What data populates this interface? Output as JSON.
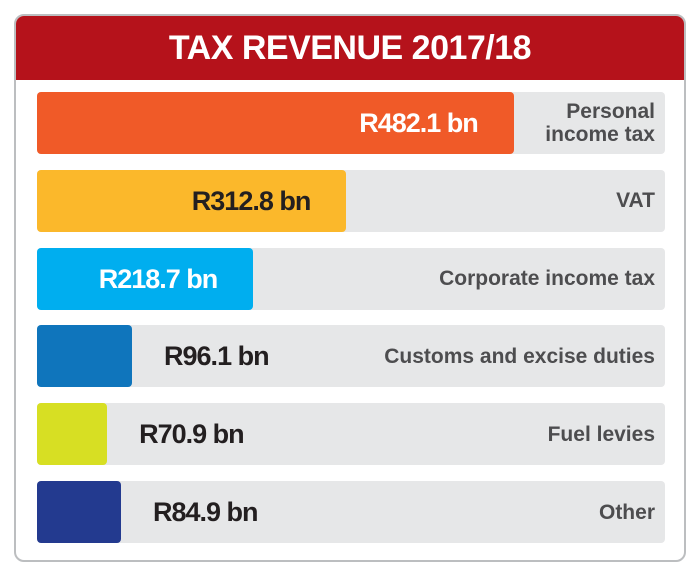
{
  "chart_data": {
    "type": "bar",
    "orientation": "horizontal",
    "title": "TAX REVENUE 2017/18",
    "categories": [
      "Personal income tax",
      "VAT",
      "Corporate income tax",
      "Customs and excise duties",
      "Fuel levies",
      "Other"
    ],
    "values": [
      482.1,
      312.8,
      218.7,
      96.1,
      70.9,
      84.9
    ],
    "value_labels": [
      "R482.1 bn",
      "R312.8 bn",
      "R218.7 bn",
      "R96.1 bn",
      "R70.9 bn",
      "R84.9 bn"
    ],
    "colors": [
      "#f05a28",
      "#fbb82b",
      "#00aeef",
      "#0f75bc",
      "#d7df23",
      "#233a8f"
    ],
    "value_label_colors": [
      "#ffffff",
      "#231f20",
      "#ffffff",
      "#231f20",
      "#231f20",
      "#231f20"
    ],
    "xlim": [
      0,
      635
    ]
  }
}
